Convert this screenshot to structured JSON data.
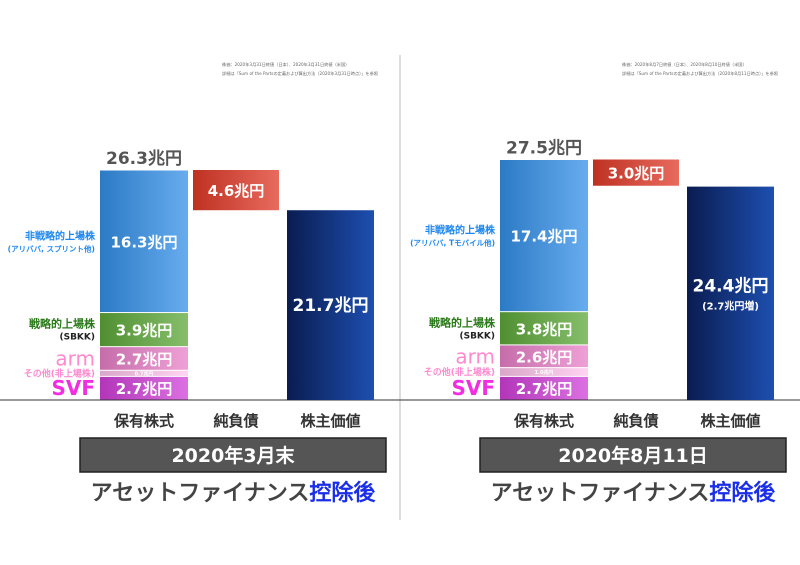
{
  "chart_data": [
    {
      "type": "waterfall-stacked-bar",
      "notes": [
        "株価：2020年3月31日終値（日本）、2020年3月31日終値（米国）",
        "詳細は「Sum of the Partsの定義および算出方法（2020年3月31日時点）」を参照"
      ],
      "categories": [
        "保有株式",
        "純負債",
        "株主価値"
      ],
      "total_label": "26.3兆円",
      "total": 26.3,
      "segments": [
        {
          "name": "SVF",
          "sub": "",
          "value": 2.7,
          "label": "2.7兆円",
          "color": "#d040d8"
        },
        {
          "name": "その他(非上場株)",
          "sub": "",
          "value": 0.7,
          "label": "0.7兆円",
          "color": "#ffc4ec"
        },
        {
          "name": "arm",
          "sub": "",
          "value": 2.7,
          "label": "2.7兆円",
          "color": "#e880c8"
        },
        {
          "name": "戦略的上場株",
          "sub": "(SBKK)",
          "value": 3.9,
          "label": "3.9兆円",
          "color": "#5ea83a"
        },
        {
          "name": "非戦略的上場株",
          "sub": "(アリババ, スプリント他)",
          "value": 16.3,
          "label": "16.3兆円",
          "color": "#3490e8"
        }
      ],
      "net_debt": {
        "value": 4.6,
        "label": "4.6兆円",
        "color": "#e03a28"
      },
      "equity": {
        "value": 21.7,
        "label": "21.7兆円",
        "sub": "",
        "color": "#0e2d7a"
      },
      "period": "2020年3月末",
      "caption": "アセットファイナンス",
      "caption_emph": "控除後"
    },
    {
      "type": "waterfall-stacked-bar",
      "notes": [
        "株価：2020年8月7日終値（日本）、2020年8月10日終値（米国）",
        "詳細は「Sum of the Partsの定義および算出方法（2020年8月11日時点）」を参照"
      ],
      "categories": [
        "保有株式",
        "純負債",
        "株主価値"
      ],
      "total_label": "27.5兆円",
      "total": 27.5,
      "segments": [
        {
          "name": "SVF",
          "sub": "",
          "value": 2.7,
          "label": "2.7兆円",
          "color": "#d040d8"
        },
        {
          "name": "その他(非上場株)",
          "sub": "",
          "value": 1.0,
          "label": "1.0兆円",
          "color": "#ffc4ec"
        },
        {
          "name": "arm",
          "sub": "",
          "value": 2.6,
          "label": "2.6兆円",
          "color": "#e880c8"
        },
        {
          "name": "戦略的上場株",
          "sub": "(SBKK)",
          "value": 3.8,
          "label": "3.8兆円",
          "color": "#5ea83a"
        },
        {
          "name": "非戦略的上場株",
          "sub": "(アリババ, Tモバイル他)",
          "value": 17.4,
          "label": "17.4兆円",
          "color": "#3490e8"
        }
      ],
      "net_debt": {
        "value": 3.0,
        "label": "3.0兆円",
        "color": "#e03a28"
      },
      "equity": {
        "value": 24.4,
        "label": "24.4兆円",
        "sub": "(2.7兆円増)",
        "color": "#0e2d7a"
      },
      "period": "2020年8月11日",
      "caption": "アセットファイナンス",
      "caption_emph": "控除後"
    }
  ],
  "colors": {
    "label_blue": "#1e88f0",
    "label_green": "#2b7a1a",
    "label_pink": "#ff8ad0",
    "label_magenta": "#f030e0",
    "caption_emph": "#1a2ee8",
    "period_box": "#555555"
  }
}
